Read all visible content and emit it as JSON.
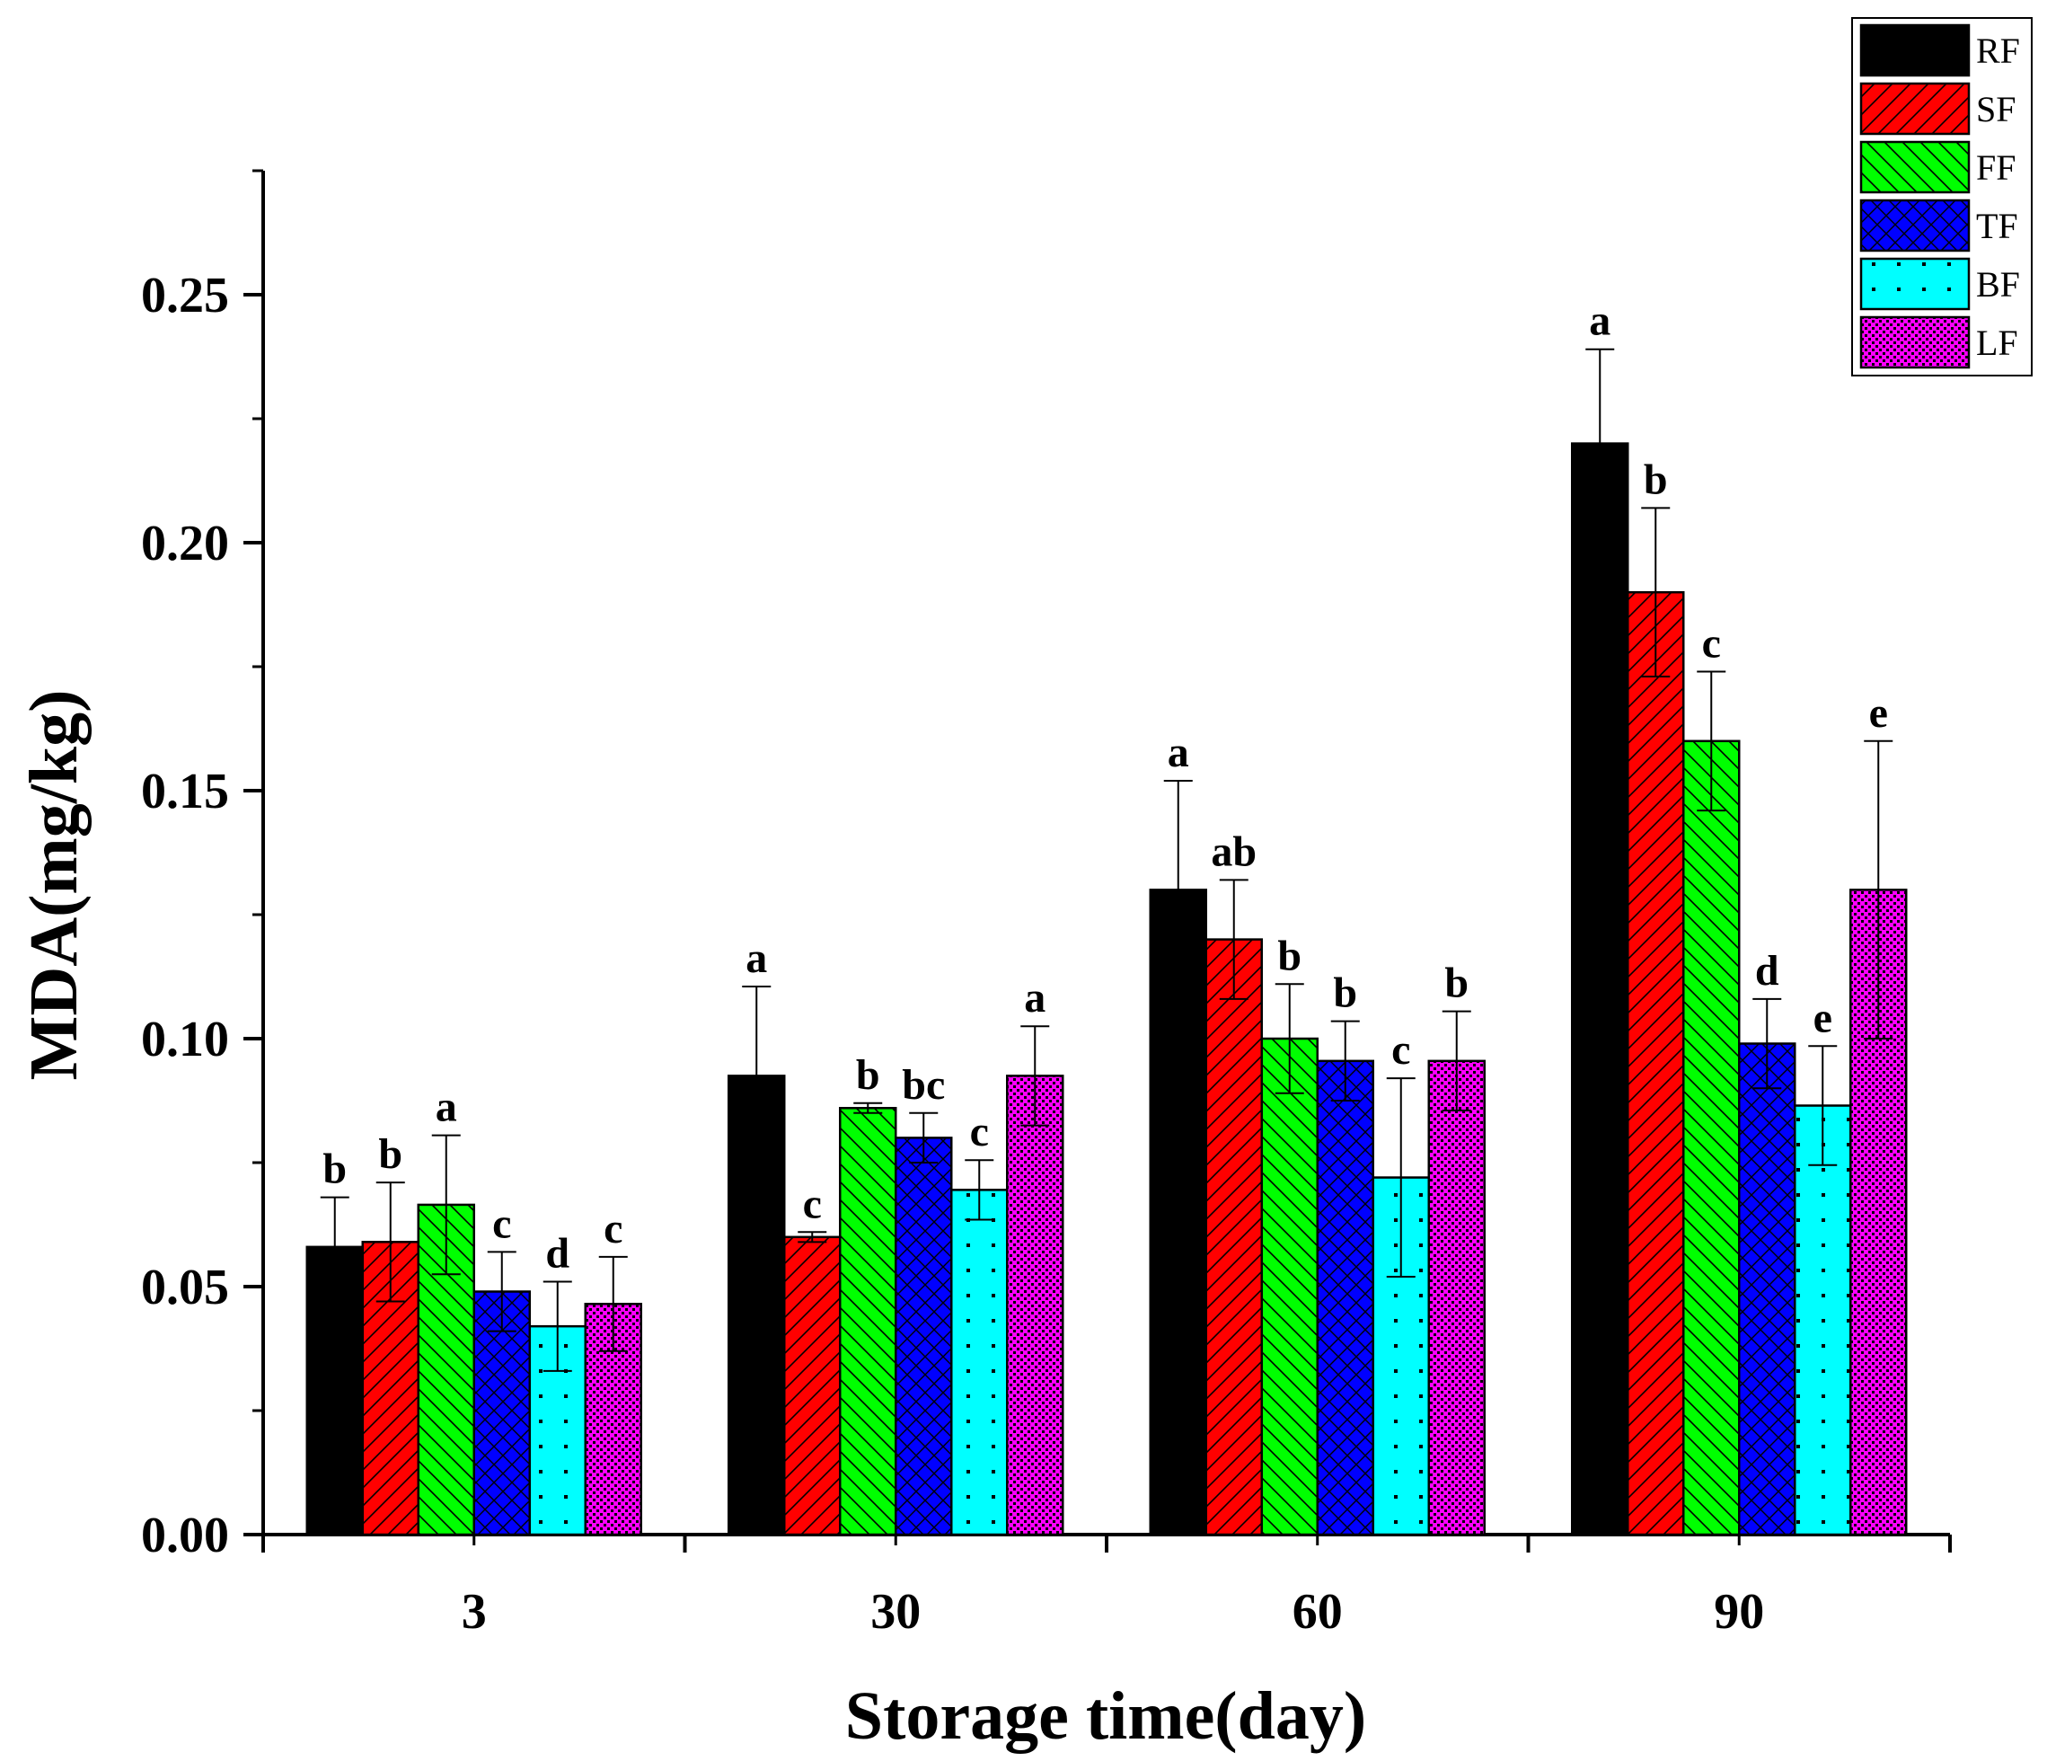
{
  "chart_data": {
    "type": "bar",
    "title": "",
    "xlabel": "Storage time(day)",
    "ylabel": "MDA(mg/kg)",
    "categories": [
      "3",
      "30",
      "60",
      "90"
    ],
    "ylim": [
      0,
      0.275
    ],
    "yticks": [
      0.0,
      0.05,
      0.1,
      0.15,
      0.2,
      0.25
    ],
    "ytick_labels": [
      "0.00",
      "0.05",
      "0.10",
      "0.15",
      "0.20",
      "0.25"
    ],
    "legend_position": "top-right",
    "series": [
      {
        "name": "RF",
        "color": "#000000",
        "pattern": "solid",
        "values": [
          0.058,
          0.0925,
          0.13,
          0.22
        ],
        "errors": [
          0.01,
          0.018,
          0.022,
          0.019
        ],
        "labels": [
          "b",
          "a",
          "a",
          "a"
        ]
      },
      {
        "name": "SF",
        "color": "#ff0000",
        "pattern": "diagonal-forward",
        "values": [
          0.059,
          0.06,
          0.12,
          0.19
        ],
        "errors": [
          0.012,
          0.001,
          0.012,
          0.017
        ],
        "labels": [
          "b",
          "c",
          "ab",
          "b"
        ]
      },
      {
        "name": "FF",
        "color": "#00ff00",
        "pattern": "diagonal-back",
        "values": [
          0.0665,
          0.086,
          0.1,
          0.16
        ],
        "errors": [
          0.014,
          0.001,
          0.011,
          0.014
        ],
        "labels": [
          "a",
          "b",
          "b",
          "c"
        ]
      },
      {
        "name": "TF",
        "color": "#0000ff",
        "pattern": "crosshatch",
        "values": [
          0.049,
          0.08,
          0.0955,
          0.099
        ],
        "errors": [
          0.008,
          0.005,
          0.008,
          0.009
        ],
        "labels": [
          "c",
          "bc",
          "b",
          "d"
        ]
      },
      {
        "name": "BF",
        "color": "#00ffff",
        "pattern": "sparse-dots",
        "values": [
          0.042,
          0.0695,
          0.072,
          0.0865
        ],
        "errors": [
          0.009,
          0.006,
          0.02,
          0.012
        ],
        "labels": [
          "d",
          "c",
          "c",
          "e"
        ]
      },
      {
        "name": "LF",
        "color": "#ff00ff",
        "pattern": "dense-dots",
        "values": [
          0.0465,
          0.0925,
          0.0955,
          0.13
        ],
        "errors": [
          0.0095,
          0.01,
          0.01,
          0.03
        ],
        "labels": [
          "c",
          "a",
          "b",
          "e"
        ]
      }
    ]
  }
}
